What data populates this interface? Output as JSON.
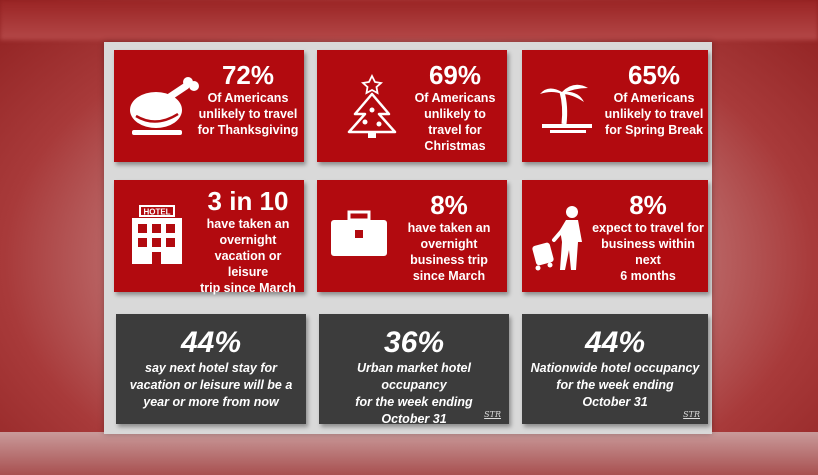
{
  "cards": [
    {
      "big": "72%",
      "lines": [
        "Of Americans",
        "unlikely to travel",
        "for Thanksgiving"
      ],
      "icon": "turkey-icon"
    },
    {
      "big": "69%",
      "lines": [
        "Of Americans",
        "unlikely to",
        "travel for",
        "Christmas"
      ],
      "icon": "christmas-tree-icon"
    },
    {
      "big": "65%",
      "lines": [
        "Of Americans",
        "unlikely to travel",
        "for Spring Break"
      ],
      "icon": "palm-tree-icon"
    },
    {
      "big": "3 in 10",
      "lines": [
        "have taken an",
        "overnight",
        "vacation or leisure",
        "trip since March"
      ],
      "icon": "hotel-icon",
      "hotel_sign": "HOTEL"
    },
    {
      "big": "8%",
      "lines": [
        "have taken an",
        "overnight",
        "business trip",
        "since March"
      ],
      "icon": "briefcase-icon"
    },
    {
      "big": "8%",
      "lines": [
        "expect to travel for",
        "business within next",
        "6 months"
      ],
      "icon": "traveler-luggage-icon"
    },
    {
      "big": "44%",
      "lines": [
        "say next hotel stay for",
        "vacation or leisure will be a",
        "year or more from now"
      ]
    },
    {
      "big": "36%",
      "lines": [
        "Urban market hotel occupancy",
        "for the week ending",
        "October 31"
      ],
      "source": "STR"
    },
    {
      "big": "44%",
      "lines": [
        "Nationwide hotel occupancy",
        "for the week ending",
        "October 31"
      ],
      "source": "STR"
    }
  ],
  "colors": {
    "red": "#b20a0f",
    "gray": "#3c3c3c",
    "panel": "#d9d9d9"
  }
}
